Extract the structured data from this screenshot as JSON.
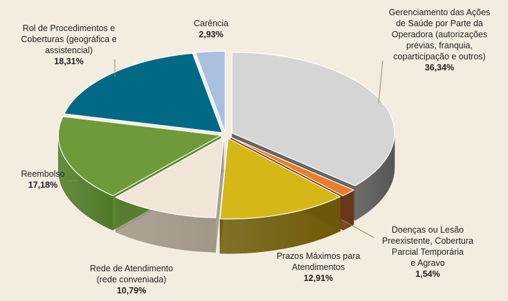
{
  "chart_data": {
    "type": "pie",
    "style": "3d-exploded-pie",
    "colors": {
      "background": "#F3EDE0",
      "leader_line": "#8A8A5A"
    },
    "slices": [
      {
        "label_lines": [
          "Gerenciamento das Ações",
          "de Saúde por Parte da",
          "Operadora (autorizações",
          "prévias, franquia,",
          "coparticipação e outros)"
        ],
        "value": 36.34,
        "value_label": "36,34%",
        "color": "#D5D5D5",
        "side_color": "#565656"
      },
      {
        "label_lines": [
          "Doenças ou Lesão",
          "Preexistente, Cobertura",
          "Parcial Temporária",
          "e Agravo"
        ],
        "value": 1.54,
        "value_label": "1,54%",
        "color": "#E87E2A",
        "side_color": "#6A3414"
      },
      {
        "label_lines": [
          "Prazos Máximos para",
          "Atendimentos"
        ],
        "value": 12.91,
        "value_label": "12,91%",
        "color": "#D5B718",
        "side_color": "#6E5B08"
      },
      {
        "label_lines": [
          "Rede de Atendimento",
          "(rede conveniada)"
        ],
        "value": 10.79,
        "value_label": "10,79%",
        "color": "#F1E5D8",
        "side_color": "#A19789"
      },
      {
        "label_lines": [
          "Reembolso"
        ],
        "value": 17.18,
        "value_label": "17,18%",
        "color": "#6E9A3A",
        "side_color": "#4E7A26"
      },
      {
        "label_lines": [
          "Rol de Procedimentos e",
          "Coberturas (geográfica e",
          "assistencial)"
        ],
        "value": 18.31,
        "value_label": "18,31%",
        "color": "#006A86",
        "side_color": "#004A5E"
      },
      {
        "label_lines": [
          "Carência"
        ],
        "value": 2.93,
        "value_label": "2,93%",
        "color": "#A8C0DE",
        "side_color": "#7890AE"
      }
    ]
  }
}
